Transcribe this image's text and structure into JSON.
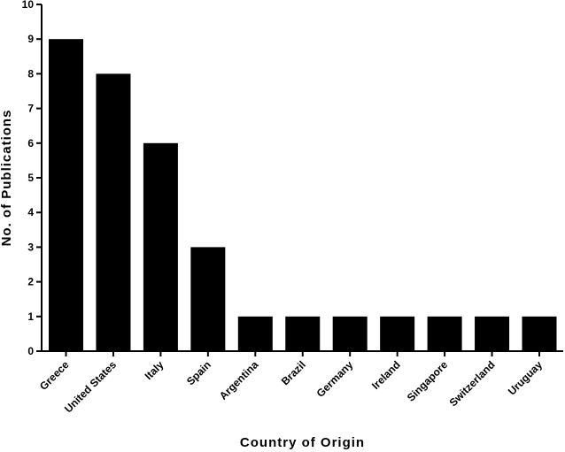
{
  "chart_data": {
    "type": "bar",
    "categories": [
      "Greece",
      "United States",
      "Italy",
      "Spain",
      "Argentina",
      "Brazil",
      "Germany",
      "Ireland",
      "Singapore",
      "Switzerland",
      "Uruguay"
    ],
    "values": [
      9,
      8,
      6,
      3,
      1,
      1,
      1,
      1,
      1,
      1,
      1
    ],
    "xlabel": "Country of Origin",
    "ylabel": "No. of Publications",
    "ylim": [
      0,
      10
    ],
    "yticks": [
      0,
      1,
      2,
      3,
      4,
      5,
      6,
      7,
      8,
      9,
      10
    ],
    "grid": false,
    "bar_color": "#000000"
  }
}
